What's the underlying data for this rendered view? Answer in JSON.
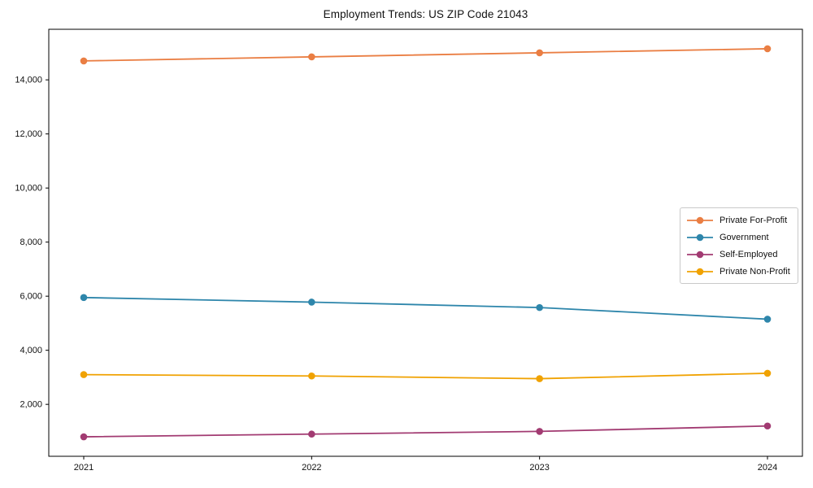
{
  "title": "Employment Trends: US ZIP Code 21043",
  "chart_data": {
    "type": "line",
    "title": "Employment Trends: US ZIP Code 21043",
    "xlabel": "",
    "ylabel": "",
    "x": [
      2021,
      2022,
      2023,
      2024
    ],
    "xtick_labels": [
      "2021",
      "2022",
      "2023",
      "2024"
    ],
    "yticks": [
      2000,
      4000,
      6000,
      8000,
      10000,
      12000,
      14000
    ],
    "ytick_labels": [
      "2,000",
      "4,000",
      "6,000",
      "8,000",
      "10,000",
      "12,000",
      "14,000"
    ],
    "ylim": [
      80,
      15870
    ],
    "grid": false,
    "legend_position": "center-right",
    "marker": "circle",
    "series": [
      {
        "name": "Private For-Profit",
        "color": "#EA7E43",
        "values": [
          14700,
          14850,
          15000,
          15150
        ]
      },
      {
        "name": "Government",
        "color": "#2E86AB",
        "values": [
          5950,
          5780,
          5580,
          5150
        ]
      },
      {
        "name": "Self-Employed",
        "color": "#A23B72",
        "values": [
          800,
          900,
          1000,
          1200
        ]
      },
      {
        "name": "Private Non-Profit",
        "color": "#F0A202",
        "values": [
          3100,
          3050,
          2950,
          3150
        ]
      }
    ]
  }
}
